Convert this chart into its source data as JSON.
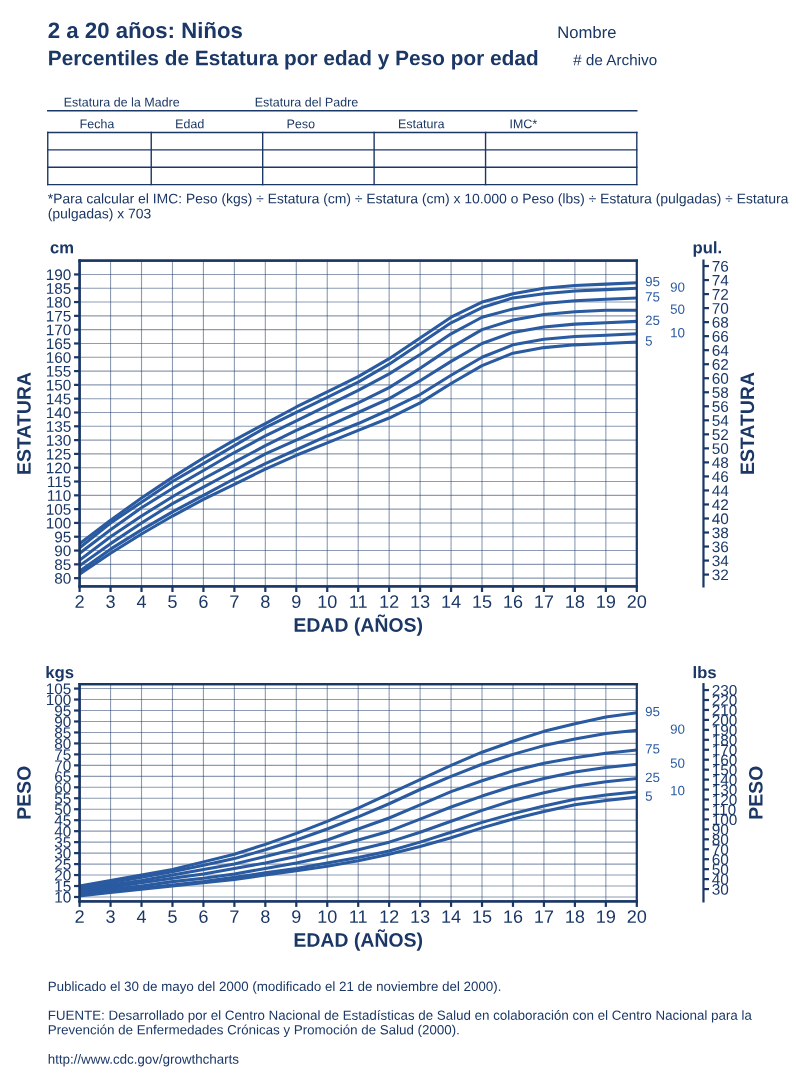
{
  "chart_data": [
    {
      "type": "line",
      "title": "2 a 20 años: Niños",
      "subtitle": "Percentiles de Estatura por edad y Peso por edad",
      "xlabel": "EDAD (AÑOS)",
      "ylabel": "ESTATURA",
      "y2label": "ESTATURA",
      "annotations": [
        "Nombre",
        "# de Archivo",
        "Estatura de la Madre",
        "Estatura del Padre",
        "Fecha",
        "Edad",
        "Peso",
        "Estatura",
        "IMC*",
        "*Para calcular el IMC: Peso (kgs) ÷ Estatura (cm) ÷ Estatura (cm) x 10.000 o Peso (lbs) ÷ Estatura (pulgadas) ÷ Estatura (pulgadas) x 703",
        "cm",
        "pul."
      ],
      "x": [
        2,
        3,
        4,
        5,
        6,
        7,
        8,
        9,
        10,
        11,
        12,
        13,
        14,
        15,
        16,
        17,
        18,
        19,
        20
      ],
      "xlim": [
        2,
        20
      ],
      "xticks": [
        2,
        3,
        4,
        5,
        6,
        7,
        8,
        9,
        10,
        11,
        12,
        13,
        14,
        15,
        16,
        17,
        18,
        19,
        20
      ],
      "ylim": [
        77,
        195
      ],
      "yticks": [
        80,
        85,
        90,
        95,
        100,
        105,
        110,
        115,
        120,
        125,
        130,
        135,
        140,
        145,
        150,
        155,
        160,
        165,
        170,
        175,
        180,
        185,
        190
      ],
      "y2lim": [
        30.31,
        76.77
      ],
      "y2ticks": [
        32,
        34,
        36,
        38,
        40,
        42,
        44,
        46,
        48,
        50,
        52,
        54,
        56,
        58,
        60,
        62,
        64,
        66,
        68,
        70,
        72,
        74,
        76
      ],
      "grid": true,
      "marker": "none",
      "line_style": "solid",
      "series": [
        {
          "name": "95",
          "color": "#2a5aa0",
          "values": [
            92.5,
            101,
            109,
            116.5,
            123.5,
            130,
            136,
            142,
            147.5,
            153,
            159.5,
            167,
            174.5,
            180,
            183,
            185,
            186,
            186.5,
            187
          ]
        },
        {
          "name": "90",
          "color": "#2a5aa0",
          "values": [
            91,
            100,
            107.5,
            115,
            121.5,
            128,
            134.5,
            140,
            145.5,
            151,
            157.5,
            165,
            172.5,
            178,
            181.5,
            183,
            184,
            184.5,
            185
          ]
        },
        {
          "name": "75",
          "color": "#2a5aa0",
          "values": [
            89,
            97.5,
            105.5,
            112.5,
            119,
            125.5,
            131.5,
            137,
            142.5,
            148,
            154,
            161,
            168.5,
            174.5,
            177.5,
            179.5,
            180.5,
            181,
            181.5
          ]
        },
        {
          "name": "50",
          "color": "#2a5aa0",
          "values": [
            86.5,
            95,
            102.5,
            109.5,
            116,
            122,
            128,
            133.5,
            138.5,
            143.5,
            149,
            156,
            163.5,
            170,
            173.5,
            175.5,
            176.5,
            177,
            177
          ]
        },
        {
          "name": "25",
          "color": "#2a5aa0",
          "values": [
            84.5,
            92.5,
            100,
            107,
            113,
            119,
            125,
            130,
            135,
            140,
            145,
            151.5,
            158.5,
            165,
            169,
            171,
            172,
            172.5,
            173
          ]
        },
        {
          "name": "10",
          "color": "#2a5aa0",
          "values": [
            82.5,
            90.5,
            97.5,
            104,
            110,
            116,
            121.5,
            126.5,
            131.5,
            136,
            141,
            146.5,
            153.5,
            160,
            164.5,
            166.5,
            167.5,
            168,
            168.5
          ]
        },
        {
          "name": "5",
          "color": "#2a5aa0",
          "values": [
            81.5,
            89,
            96,
            102.5,
            108.5,
            114,
            119.5,
            124.5,
            129,
            133.5,
            138,
            143.5,
            150.5,
            157,
            161.5,
            163.5,
            164.5,
            165,
            165.5
          ]
        }
      ]
    },
    {
      "type": "line",
      "xlabel": "EDAD (AÑOS)",
      "ylabel": "PESO",
      "y2label": "PESO",
      "annotations": [
        "kgs",
        "lbs",
        "Publicado el 30 de mayo del 2000 (modificado el 21 de noviembre del 2000).",
        "FUENTE: Desarrollado por el Centro Nacional de Estadísticas de Salud en colaboración con el Centro Nacional para la Prevención de Enfermedades Crónicas y Promoción de Salud (2000).",
        "http://www.cdc.gov/growthcharts"
      ],
      "x": [
        2,
        3,
        4,
        5,
        6,
        7,
        8,
        9,
        10,
        11,
        12,
        13,
        14,
        15,
        16,
        17,
        18,
        19,
        20
      ],
      "xlim": [
        2,
        20
      ],
      "xticks": [
        2,
        3,
        4,
        5,
        6,
        7,
        8,
        9,
        10,
        11,
        12,
        13,
        14,
        15,
        16,
        17,
        18,
        19,
        20
      ],
      "ylim": [
        8,
        107
      ],
      "yticks": [
        10,
        15,
        20,
        25,
        30,
        35,
        40,
        45,
        50,
        55,
        60,
        65,
        70,
        75,
        80,
        85,
        90,
        95,
        100,
        105
      ],
      "y2lim": [
        17.64,
        235.9
      ],
      "y2ticks": [
        30,
        40,
        50,
        60,
        70,
        80,
        90,
        100,
        110,
        120,
        130,
        140,
        150,
        160,
        170,
        180,
        190,
        200,
        210,
        220,
        230
      ],
      "grid": true,
      "marker": "none",
      "line_style": "solid",
      "series": [
        {
          "name": "95",
          "color": "#2a5aa0",
          "values": [
            15,
            17.5,
            20,
            22.5,
            26,
            29.5,
            34,
            39,
            44.5,
            50.5,
            57,
            63.5,
            70,
            76,
            81,
            85.5,
            89,
            92,
            94
          ]
        },
        {
          "name": "90",
          "color": "#2a5aa0",
          "values": [
            14.5,
            16.5,
            19,
            21.5,
            24.5,
            27.5,
            31.5,
            36,
            41,
            46.5,
            52.5,
            59,
            65,
            70.5,
            75,
            79,
            82,
            84.5,
            86
          ]
        },
        {
          "name": "75",
          "color": "#2a5aa0",
          "values": [
            13.5,
            15.5,
            17.5,
            20,
            22.5,
            25,
            28.5,
            32,
            36,
            41,
            46,
            52,
            58,
            63,
            67.5,
            71,
            73.5,
            75.5,
            77
          ]
        },
        {
          "name": "50",
          "color": "#2a5aa0",
          "values": [
            12.5,
            14.5,
            16.5,
            18.5,
            20.5,
            23,
            25.5,
            28.5,
            32,
            36,
            40,
            45.5,
            51,
            56,
            60.5,
            64,
            67,
            69,
            70.5
          ]
        },
        {
          "name": "25",
          "color": "#2a5aa0",
          "values": [
            11.5,
            13.5,
            15,
            17,
            18.5,
            20.5,
            23,
            25.5,
            28.5,
            31.5,
            35,
            39.5,
            44.5,
            49.5,
            54,
            57.5,
            60.5,
            62.5,
            64
          ]
        },
        {
          "name": "10",
          "color": "#2a5aa0",
          "values": [
            11,
            12.5,
            14,
            15.5,
            17,
            19,
            21,
            23,
            25.5,
            28,
            31,
            35,
            39.5,
            44,
            48,
            51.5,
            54.5,
            56.5,
            58
          ]
        },
        {
          "name": "5",
          "color": "#2a5aa0",
          "values": [
            10.5,
            12,
            13.5,
            15,
            16.5,
            18,
            20,
            22,
            24,
            26.5,
            29.5,
            33,
            37,
            41.5,
            45.5,
            49,
            52,
            54,
            55.5
          ]
        }
      ]
    }
  ]
}
